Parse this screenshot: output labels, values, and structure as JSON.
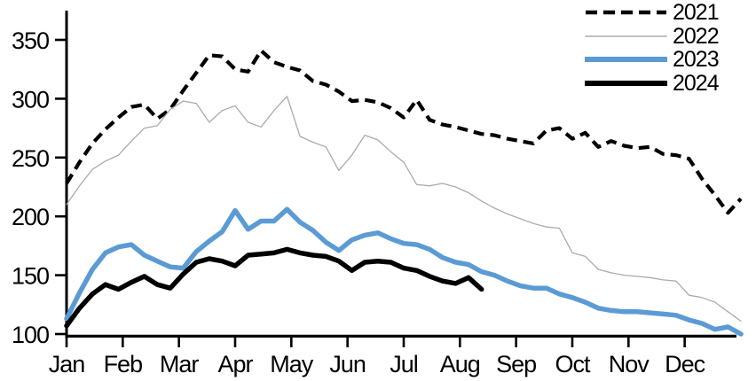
{
  "chart_data": {
    "type": "line",
    "title": "",
    "grid": false,
    "background": "#ffffff",
    "legend_position": "top-right",
    "x_frequency": "weekly",
    "x_axis": {
      "labels": [
        "Jan",
        "Feb",
        "Mar",
        "Apr",
        "May",
        "Jun",
        "Jul",
        "Aug",
        "Sep",
        "Oct",
        "Nov",
        "Dec"
      ]
    },
    "y_axis": {
      "ticks": [
        100,
        150,
        200,
        250,
        300,
        350
      ],
      "min": 100,
      "max": 350
    },
    "series": [
      {
        "name": "2021",
        "color": "#000000",
        "line_style": "dashed",
        "line_width": 4.2,
        "values": [
          228,
          246,
          262,
          274,
          284,
          293,
          295,
          283,
          291,
          307,
          322,
          337,
          336,
          325,
          323,
          341,
          331,
          327,
          324,
          315,
          312,
          306,
          298,
          299,
          297,
          292,
          284,
          299,
          282,
          278,
          276,
          273,
          270,
          269,
          266,
          264,
          262,
          273,
          275,
          266,
          271,
          259,
          264,
          260,
          258,
          259,
          253,
          252,
          249,
          232,
          218,
          203,
          215
        ]
      },
      {
        "name": "2022",
        "color": "#ababab",
        "line_style": "solid",
        "line_width": 1.3,
        "values": [
          210,
          226,
          240,
          247,
          252,
          264,
          275,
          277,
          291,
          298,
          296,
          280,
          290,
          294,
          280,
          276,
          290,
          302,
          268,
          263,
          259,
          239,
          252,
          269,
          265,
          255,
          246,
          227,
          226,
          228,
          225,
          220,
          213,
          207,
          202,
          198,
          194,
          191,
          190,
          169,
          166,
          155,
          152,
          150,
          149,
          148,
          146,
          145,
          133,
          131,
          127,
          119,
          111
        ]
      },
      {
        "name": "2023",
        "color": "#5b9bd5",
        "line_style": "solid",
        "line_width": 5.5,
        "values": [
          113,
          135,
          155,
          169,
          174,
          176,
          167,
          162,
          157,
          156,
          170,
          179,
          187,
          205,
          189,
          196,
          196,
          206,
          195,
          188,
          178,
          171,
          180,
          184,
          186,
          181,
          177,
          176,
          172,
          165,
          161,
          159,
          153,
          150,
          145,
          141,
          139,
          139,
          134,
          131,
          127,
          122,
          120,
          119,
          119,
          118,
          117,
          116,
          112,
          109,
          104,
          106,
          100
        ]
      },
      {
        "name": "2024",
        "color": "#000000",
        "line_style": "solid",
        "line_width": 5.5,
        "values": [
          107,
          122,
          134,
          142,
          138,
          144,
          149,
          142,
          139,
          151,
          161,
          164,
          162,
          158,
          167,
          168,
          169,
          172,
          169,
          167,
          166,
          162,
          154,
          161,
          162,
          161,
          156,
          154,
          149,
          145,
          143,
          148,
          138
        ]
      }
    ]
  }
}
